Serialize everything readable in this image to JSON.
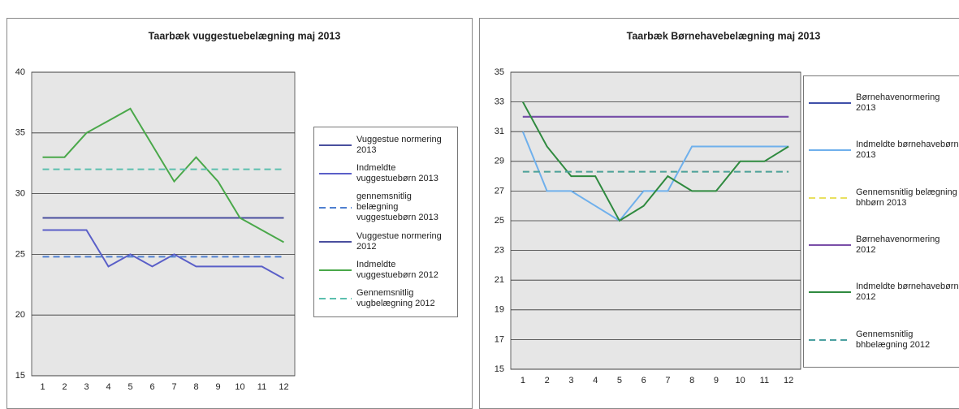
{
  "chart_data": [
    {
      "type": "line",
      "title": "Taarbæk vuggestuebelægning maj 2013",
      "categories": [
        "1",
        "2",
        "3",
        "4",
        "5",
        "6",
        "7",
        "8",
        "9",
        "10",
        "11",
        "12"
      ],
      "ylim": [
        15,
        40
      ],
      "yticks": [
        15,
        20,
        25,
        30,
        35,
        40
      ],
      "grid": true,
      "series": [
        {
          "name": "Vuggestue normering 2013",
          "color": "#4a4f9e",
          "dashed": false,
          "values": [
            28,
            28,
            28,
            28,
            28,
            28,
            28,
            28,
            28,
            28,
            28,
            28
          ]
        },
        {
          "name": "Indmeldte vuggestuebørn 2013",
          "color": "#5a5fc8",
          "dashed": false,
          "values": [
            27,
            27,
            27,
            24,
            25,
            24,
            25,
            24,
            24,
            24,
            24,
            23
          ]
        },
        {
          "name": "gennemsnitlig belægning vuggestuebørn 2013",
          "color": "#4f7fd0",
          "dashed": true,
          "values": [
            24.8,
            24.8,
            24.8,
            24.8,
            24.8,
            24.8,
            24.8,
            24.8,
            24.8,
            24.8,
            24.8,
            24.8
          ]
        },
        {
          "name": "Vuggestue normering 2012",
          "color": "#4a4f9e",
          "dashed": false,
          "values": [
            28,
            28,
            28,
            28,
            28,
            28,
            28,
            28,
            28,
            28,
            28,
            28
          ]
        },
        {
          "name": "Indmeldte vuggestuebørn 2012",
          "color": "#4aa84a",
          "dashed": false,
          "values": [
            33,
            33,
            35,
            36,
            37,
            34,
            31,
            33,
            31,
            28,
            27,
            26
          ]
        },
        {
          "name": "Gennemsnitlig vugbelægning 2012",
          "color": "#5bbfae",
          "dashed": true,
          "values": [
            32,
            32,
            32,
            32,
            32,
            32,
            32,
            32,
            32,
            32,
            32,
            32
          ]
        }
      ]
    },
    {
      "type": "line",
      "title": "Taarbæk Børnehavebelægning maj 2013",
      "categories": [
        "1",
        "2",
        "3",
        "4",
        "5",
        "6",
        "7",
        "8",
        "9",
        "10",
        "11",
        "12"
      ],
      "ylim": [
        15,
        35
      ],
      "yticks": [
        15,
        17,
        19,
        21,
        23,
        25,
        27,
        29,
        31,
        33,
        35
      ],
      "grid": true,
      "series": [
        {
          "name": "Børnehavenormering 2013",
          "color": "#3f4fa8",
          "dashed": false,
          "values": [
            32,
            32,
            32,
            32,
            32,
            32,
            32,
            32,
            32,
            32,
            32,
            32
          ]
        },
        {
          "name": "Indmeldte børnehavebørn 2013",
          "color": "#6fb0ec",
          "dashed": false,
          "values": [
            31,
            27,
            27,
            26,
            25,
            27,
            27,
            30,
            30,
            30,
            30,
            30
          ]
        },
        {
          "name": "Gennemsnitlig belægning bhbørn 2013",
          "color": "#e8e060",
          "dashed": true,
          "values": [
            28.3,
            28.3,
            28.3,
            28.3,
            28.3,
            28.3,
            28.3,
            28.3,
            28.3,
            28.3,
            28.3,
            28.3
          ]
        },
        {
          "name": "Børnehavenormering 2012",
          "color": "#7a4fa8",
          "dashed": false,
          "values": [
            32,
            32,
            32,
            32,
            32,
            32,
            32,
            32,
            32,
            32,
            32,
            32
          ]
        },
        {
          "name": "Indmeldte børnehavebørn 2012",
          "color": "#2f8a3f",
          "dashed": false,
          "values": [
            33,
            30,
            28,
            28,
            25,
            26,
            28,
            27,
            27,
            29,
            29,
            30
          ]
        },
        {
          "name": "Gennemsnitlig bhbelægning 2012",
          "color": "#4aa0a0",
          "dashed": true,
          "values": [
            28.3,
            28.3,
            28.3,
            28.3,
            28.3,
            28.3,
            28.3,
            28.3,
            28.3,
            28.3,
            28.3,
            28.3
          ]
        }
      ]
    }
  ]
}
